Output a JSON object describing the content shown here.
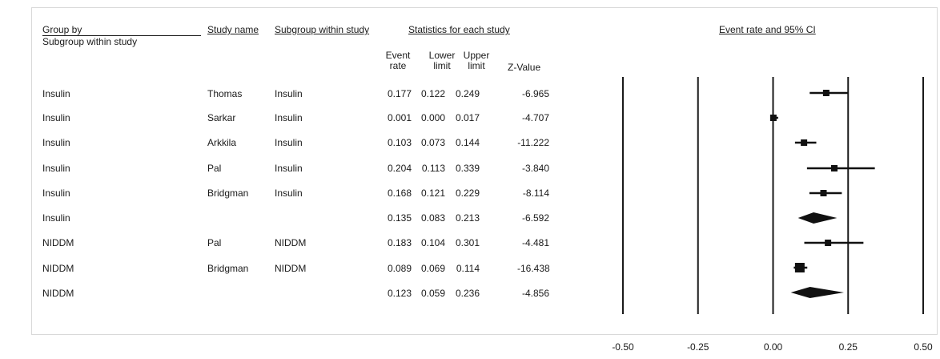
{
  "headers": {
    "group_by": "Group by",
    "subgroup": "Subgroup within study",
    "study_name": "Study name",
    "subgroup_within_study": "Subgroup within study",
    "statistics": "Statistics for each study",
    "event_rate": "Event rate",
    "lower_limit": "Lower limit",
    "upper_limit": "Upper limit",
    "z_value": "Z-Value",
    "plot_title": "Event rate and 95% CI"
  },
  "rows": [
    {
      "group": "Insulin",
      "study": "Thomas",
      "subgroup": "Insulin",
      "rate": "0.177",
      "lower": "0.122",
      "upper": "0.249",
      "z": "-6.965"
    },
    {
      "group": "Insulin",
      "study": "Sarkar",
      "subgroup": "Insulin",
      "rate": "0.001",
      "lower": "0.000",
      "upper": "0.017",
      "z": "-4.707"
    },
    {
      "group": "Insulin",
      "study": "Arkkila",
      "subgroup": "Insulin",
      "rate": "0.103",
      "lower": "0.073",
      "upper": "0.144",
      "z": "-11.222"
    },
    {
      "group": "Insulin",
      "study": "Pal",
      "subgroup": "Insulin",
      "rate": "0.204",
      "lower": "0.113",
      "upper": "0.339",
      "z": "-3.840"
    },
    {
      "group": "Insulin",
      "study": "Bridgman",
      "subgroup": "Insulin",
      "rate": "0.168",
      "lower": "0.121",
      "upper": "0.229",
      "z": "-8.114"
    },
    {
      "group": "Insulin",
      "study": "",
      "subgroup": "",
      "rate": "0.135",
      "lower": "0.083",
      "upper": "0.213",
      "z": "-6.592"
    },
    {
      "group": "NIDDM",
      "study": "Pal",
      "subgroup": "NIDDM",
      "rate": "0.183",
      "lower": "0.104",
      "upper": "0.301",
      "z": "-4.481"
    },
    {
      "group": "NIDDM",
      "study": "Bridgman",
      "subgroup": "NIDDM",
      "rate": "0.089",
      "lower": "0.069",
      "upper": "0.114",
      "z": "-16.438"
    },
    {
      "group": "NIDDM",
      "study": "",
      "subgroup": "",
      "rate": "0.123",
      "lower": "0.059",
      "upper": "0.236",
      "z": "-4.856"
    }
  ],
  "chart_data": {
    "type": "scatter",
    "title": "Event rate and 95% CI",
    "xlim": [
      -0.5,
      0.5
    ],
    "x_ticks": [
      "-0.50",
      "-0.25",
      "0.00",
      "0.25",
      "0.50"
    ],
    "reference_lines": [
      -0.5,
      -0.25,
      0.0,
      0.25,
      0.5
    ],
    "points": [
      {
        "label": "Thomas",
        "kind": "study",
        "rate": 0.177,
        "lower": 0.122,
        "upper": 0.249
      },
      {
        "label": "Sarkar",
        "kind": "study",
        "rate": 0.001,
        "lower": 0.0,
        "upper": 0.017
      },
      {
        "label": "Arkkila",
        "kind": "study",
        "rate": 0.103,
        "lower": 0.073,
        "upper": 0.144
      },
      {
        "label": "Pal",
        "kind": "study",
        "rate": 0.204,
        "lower": 0.113,
        "upper": 0.339
      },
      {
        "label": "Bridgman",
        "kind": "study",
        "rate": 0.168,
        "lower": 0.121,
        "upper": 0.229
      },
      {
        "label": "Insulin",
        "kind": "summary",
        "rate": 0.135,
        "lower": 0.083,
        "upper": 0.213
      },
      {
        "label": "Pal",
        "kind": "study",
        "rate": 0.183,
        "lower": 0.104,
        "upper": 0.301
      },
      {
        "label": "Bridgman",
        "kind": "study",
        "rate": 0.089,
        "lower": 0.069,
        "upper": 0.114
      },
      {
        "label": "NIDDM",
        "kind": "summary",
        "rate": 0.123,
        "lower": 0.059,
        "upper": 0.236
      }
    ]
  }
}
